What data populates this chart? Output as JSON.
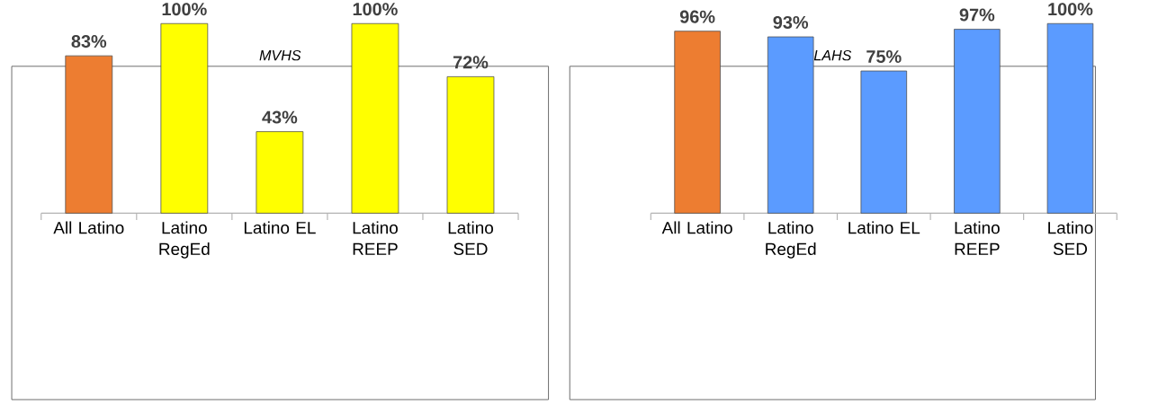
{
  "chart_data": [
    {
      "type": "bar",
      "title": "MVHS",
      "categories": [
        "All Latino",
        "Latino RegEd",
        "Latino EL",
        "Latino REEP",
        "Latino SED"
      ],
      "values": [
        83,
        100,
        43,
        100,
        72
      ],
      "colors": [
        "#ed7d31",
        "#ffff00",
        "#ffff00",
        "#ffff00",
        "#ffff00"
      ],
      "value_labels": [
        "83%",
        "100%",
        "43%",
        "100%",
        "72%"
      ]
    },
    {
      "type": "bar",
      "title": "LAHS",
      "categories": [
        "All Latino",
        "Latino RegEd",
        "Latino EL",
        "Latino REEP",
        "Latino SED"
      ],
      "values": [
        96,
        93,
        75,
        97,
        100
      ],
      "colors": [
        "#ed7d31",
        "#5b9bff",
        "#5b9bff",
        "#5b9bff",
        "#5b9bff"
      ],
      "value_labels": [
        "96%",
        "93%",
        "75%",
        "97%",
        "100%"
      ]
    }
  ]
}
